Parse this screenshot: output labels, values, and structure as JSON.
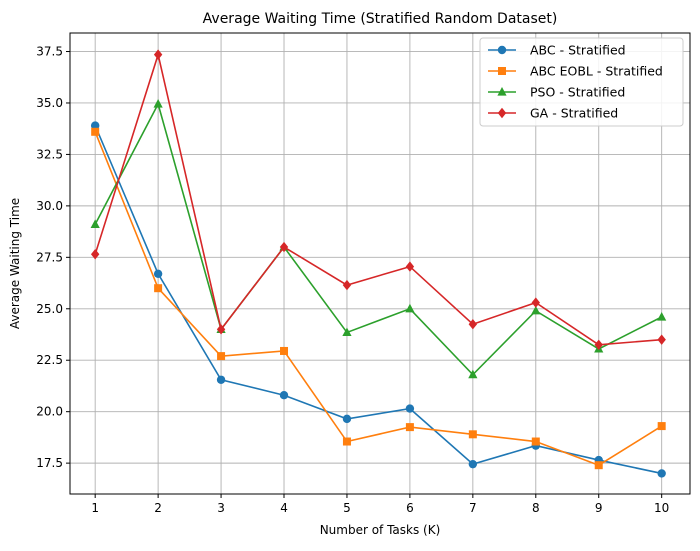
{
  "chart_data": {
    "type": "line",
    "title": "Average Waiting Time (Stratified Random Dataset)",
    "xlabel": "Number of Tasks (K)",
    "ylabel": "Average Waiting Time",
    "x": [
      1,
      2,
      3,
      4,
      5,
      6,
      7,
      8,
      9,
      10
    ],
    "x_ticks": [
      "1",
      "2",
      "3",
      "4",
      "5",
      "6",
      "7",
      "8",
      "9",
      "10"
    ],
    "y_ticks": [
      "17.5",
      "20.0",
      "22.5",
      "25.0",
      "27.5",
      "30.0",
      "32.5",
      "35.0",
      "37.5"
    ],
    "xlim": [
      0.6,
      10.45
    ],
    "ylim": [
      16.0,
      38.4
    ],
    "grid": true,
    "legend_position": "upper right",
    "series": [
      {
        "name": "ABC - Stratified",
        "color": "#1f77b4",
        "marker": "circle",
        "values": [
          33.9,
          26.7,
          21.55,
          20.8,
          19.65,
          20.15,
          17.45,
          18.35,
          17.65,
          17.0
        ]
      },
      {
        "name": "ABC EOBL - Stratified",
        "color": "#ff7f0e",
        "marker": "square",
        "values": [
          33.6,
          26.0,
          22.7,
          22.95,
          18.55,
          19.25,
          18.9,
          18.55,
          17.4,
          19.3
        ]
      },
      {
        "name": "PSO - Stratified",
        "color": "#2ca02c",
        "marker": "triangle",
        "values": [
          29.1,
          34.95,
          24.0,
          28.0,
          23.85,
          25.0,
          21.8,
          24.9,
          23.05,
          24.6
        ]
      },
      {
        "name": "GA - Stratified",
        "color": "#d62728",
        "marker": "diamond",
        "values": [
          27.65,
          37.35,
          24.0,
          28.0,
          26.15,
          27.05,
          24.25,
          25.3,
          23.25,
          23.5
        ]
      }
    ]
  }
}
